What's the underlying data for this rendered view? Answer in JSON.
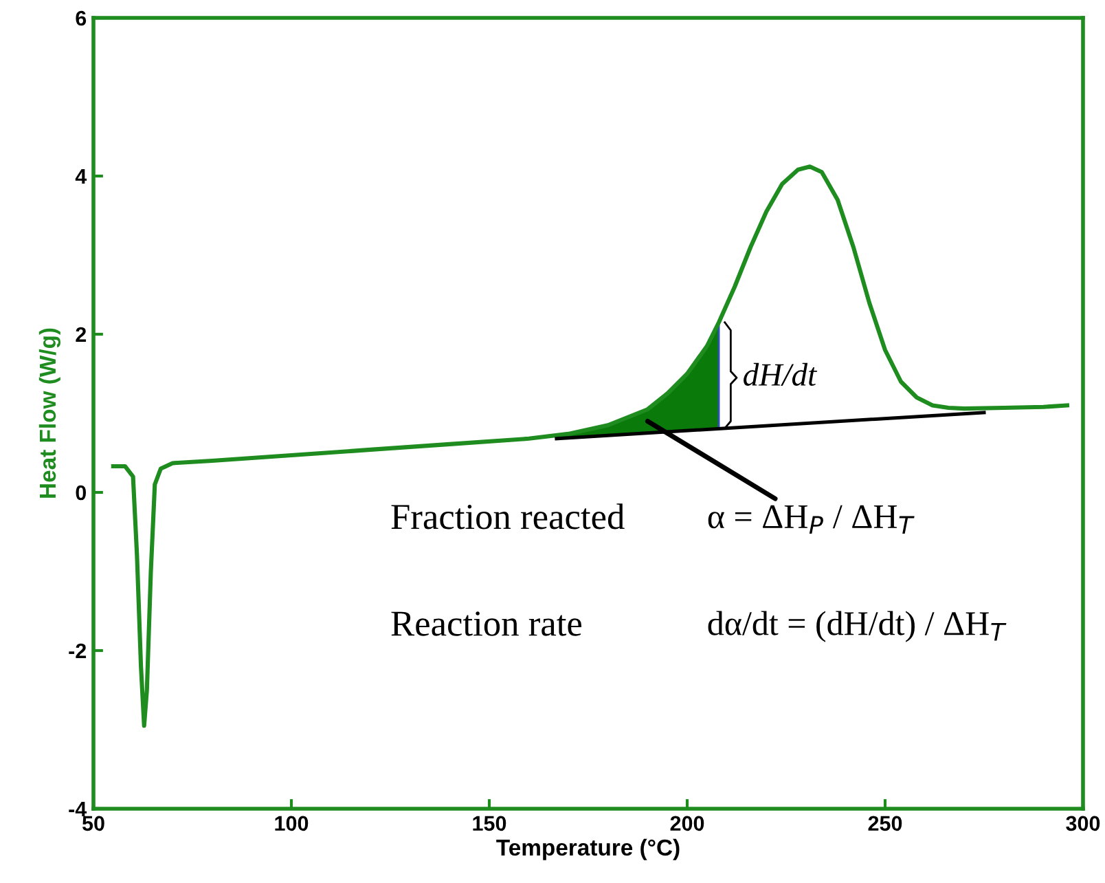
{
  "chart_data": {
    "type": "line",
    "xlabel": "Temperature (°C)",
    "ylabel": "Heat Flow (W/g)",
    "xlim": [
      50,
      300
    ],
    "ylim": [
      -4,
      6
    ],
    "xticks": [
      50,
      100,
      150,
      200,
      250,
      300
    ],
    "yticks": [
      -4,
      -2,
      0,
      2,
      4,
      6
    ],
    "grid": false,
    "legend": false,
    "marker": "none",
    "line_style": "solid",
    "series": [
      {
        "color": "#1e8c1e",
        "x": [
          55,
          58,
          60,
          61,
          62,
          62.8,
          63.5,
          64.5,
          65.5,
          67,
          70,
          80,
          100,
          120,
          140,
          160,
          170,
          180,
          190,
          195,
          200,
          205,
          208,
          212,
          216,
          220,
          224,
          228,
          231,
          234,
          238,
          242,
          246,
          250,
          254,
          258,
          262,
          266,
          270,
          280,
          290,
          296
        ],
        "values": [
          0.33,
          0.33,
          0.2,
          -0.8,
          -2.2,
          -2.95,
          -2.5,
          -1.0,
          0.1,
          0.3,
          0.37,
          0.4,
          0.47,
          0.54,
          0.61,
          0.68,
          0.74,
          0.85,
          1.05,
          1.25,
          1.5,
          1.85,
          2.15,
          2.6,
          3.1,
          3.55,
          3.9,
          4.08,
          4.12,
          4.05,
          3.7,
          3.1,
          2.4,
          1.8,
          1.4,
          1.2,
          1.1,
          1.07,
          1.06,
          1.07,
          1.08,
          1.1
        ]
      },
      {
        "type": "area",
        "color": "#0a7a0a",
        "x": [
          167,
          170,
          175,
          180,
          185,
          190,
          195,
          200,
          205,
          208
        ],
        "values": [
          0.72,
          0.74,
          0.79,
          0.85,
          0.94,
          1.05,
          1.25,
          1.5,
          1.85,
          2.15
        ]
      },
      {
        "type": "line",
        "color": "#000000",
        "x": [
          167,
          275
        ],
        "values": [
          0.68,
          1.01
        ]
      }
    ],
    "annotations": [
      {
        "text": "dH/dt",
        "x": 208,
        "y": 1.45
      },
      {
        "text": "Fraction reacted"
      },
      "α = ΔH$_{P}$ / ΔH$_{T}$",
      {
        "text": "Reaction rate"
      },
      {
        "text": "dα/dt = (dH/dt) / ΔH$_{T}$"
      }
    ]
  }
}
